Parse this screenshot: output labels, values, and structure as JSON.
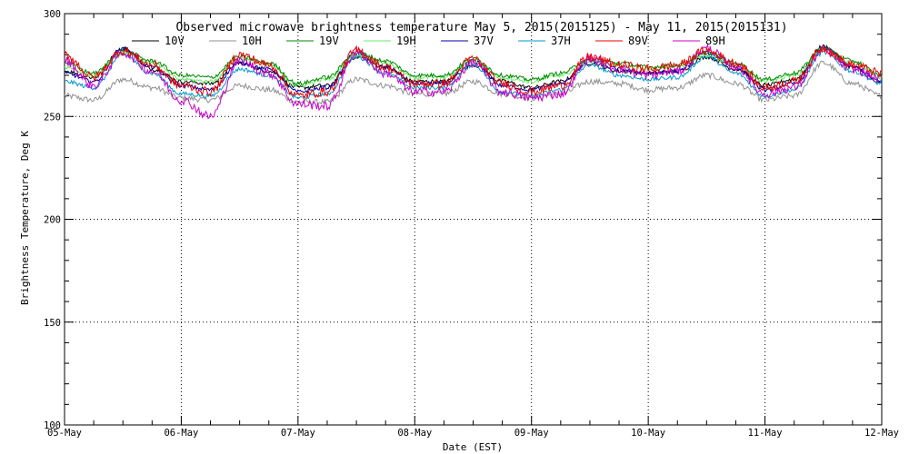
{
  "chart_data": {
    "type": "line",
    "title": "Observed microwave brightness temperature May  5, 2015(2015125) - May 11, 2015(2015131)",
    "xlabel": "Date (EST)",
    "ylabel": "Brightness Temperature, Deg K",
    "x_ticks": [
      "05-May",
      "06-May",
      "07-May",
      "08-May",
      "09-May",
      "10-May",
      "11-May",
      "12-May"
    ],
    "xlim": [
      "2015-05-05",
      "2015-05-12"
    ],
    "y_ticks": [
      "100",
      "150",
      "200",
      "250",
      "300"
    ],
    "ylim": [
      100,
      300
    ],
    "grid": true,
    "legend_position": "top",
    "x_days": [
      0,
      0.25,
      0.5,
      0.75,
      1.0,
      1.25,
      1.5,
      1.75,
      2.0,
      2.25,
      2.5,
      2.75,
      3.0,
      3.25,
      3.5,
      3.75,
      4.0,
      4.25,
      4.5,
      4.75,
      5.0,
      5.25,
      5.5,
      5.75,
      6.0,
      6.25,
      6.5,
      6.75,
      7.0
    ],
    "series": [
      {
        "name": "10V",
        "color": "#000000",
        "values": [
          272,
          269,
          283,
          273,
          267,
          266,
          276,
          272,
          264,
          265,
          279,
          274,
          267,
          267,
          275,
          267,
          264,
          267,
          276,
          272,
          271,
          272,
          279,
          273,
          265,
          268,
          284,
          274,
          266
        ]
      },
      {
        "name": "10H",
        "color": "#909090",
        "values": [
          260,
          258,
          268,
          264,
          259,
          258,
          265,
          263,
          257,
          257,
          268,
          265,
          261,
          261,
          267,
          261,
          259,
          261,
          267,
          266,
          263,
          264,
          270,
          266,
          258,
          260,
          276,
          266,
          260
        ]
      },
      {
        "name": "19V",
        "color": "#008800",
        "values": [
          276,
          271,
          282,
          277,
          270,
          269,
          279,
          276,
          266,
          269,
          281,
          277,
          270,
          270,
          278,
          270,
          268,
          271,
          278,
          276,
          274,
          275,
          281,
          276,
          268,
          271,
          283,
          277,
          270
        ]
      },
      {
        "name": "19H",
        "color": "#66ee66",
        "values": [
          274,
          270,
          281,
          276,
          268,
          267,
          278,
          275,
          265,
          268,
          280,
          276,
          269,
          269,
          277,
          269,
          267,
          270,
          277,
          275,
          273,
          274,
          280,
          275,
          267,
          270,
          282,
          276,
          269
        ]
      },
      {
        "name": "37V",
        "color": "#0000aa",
        "values": [
          271,
          267,
          283,
          274,
          265,
          263,
          276,
          273,
          262,
          264,
          281,
          274,
          266,
          266,
          277,
          265,
          263,
          266,
          277,
          273,
          271,
          272,
          281,
          274,
          263,
          266,
          283,
          274,
          267
        ]
      },
      {
        "name": "37H",
        "color": "#0099cc",
        "values": [
          267,
          264,
          280,
          271,
          261,
          260,
          273,
          270,
          259,
          261,
          279,
          271,
          264,
          264,
          275,
          262,
          260,
          263,
          275,
          270,
          268,
          269,
          279,
          271,
          260,
          263,
          281,
          272,
          266
        ]
      },
      {
        "name": "89V",
        "color": "#ee0000",
        "values": [
          280,
          269,
          282,
          275,
          265,
          262,
          280,
          275,
          260,
          262,
          282,
          274,
          266,
          266,
          278,
          266,
          262,
          265,
          279,
          275,
          273,
          275,
          282,
          276,
          264,
          267,
          283,
          275,
          271
        ]
      },
      {
        "name": "89H",
        "color": "#cc00cc",
        "values": [
          277,
          265,
          281,
          272,
          258,
          250,
          277,
          271,
          256,
          255,
          281,
          271,
          262,
          262,
          276,
          262,
          259,
          261,
          278,
          273,
          270,
          272,
          283,
          274,
          261,
          264,
          282,
          273,
          268
        ]
      }
    ]
  }
}
